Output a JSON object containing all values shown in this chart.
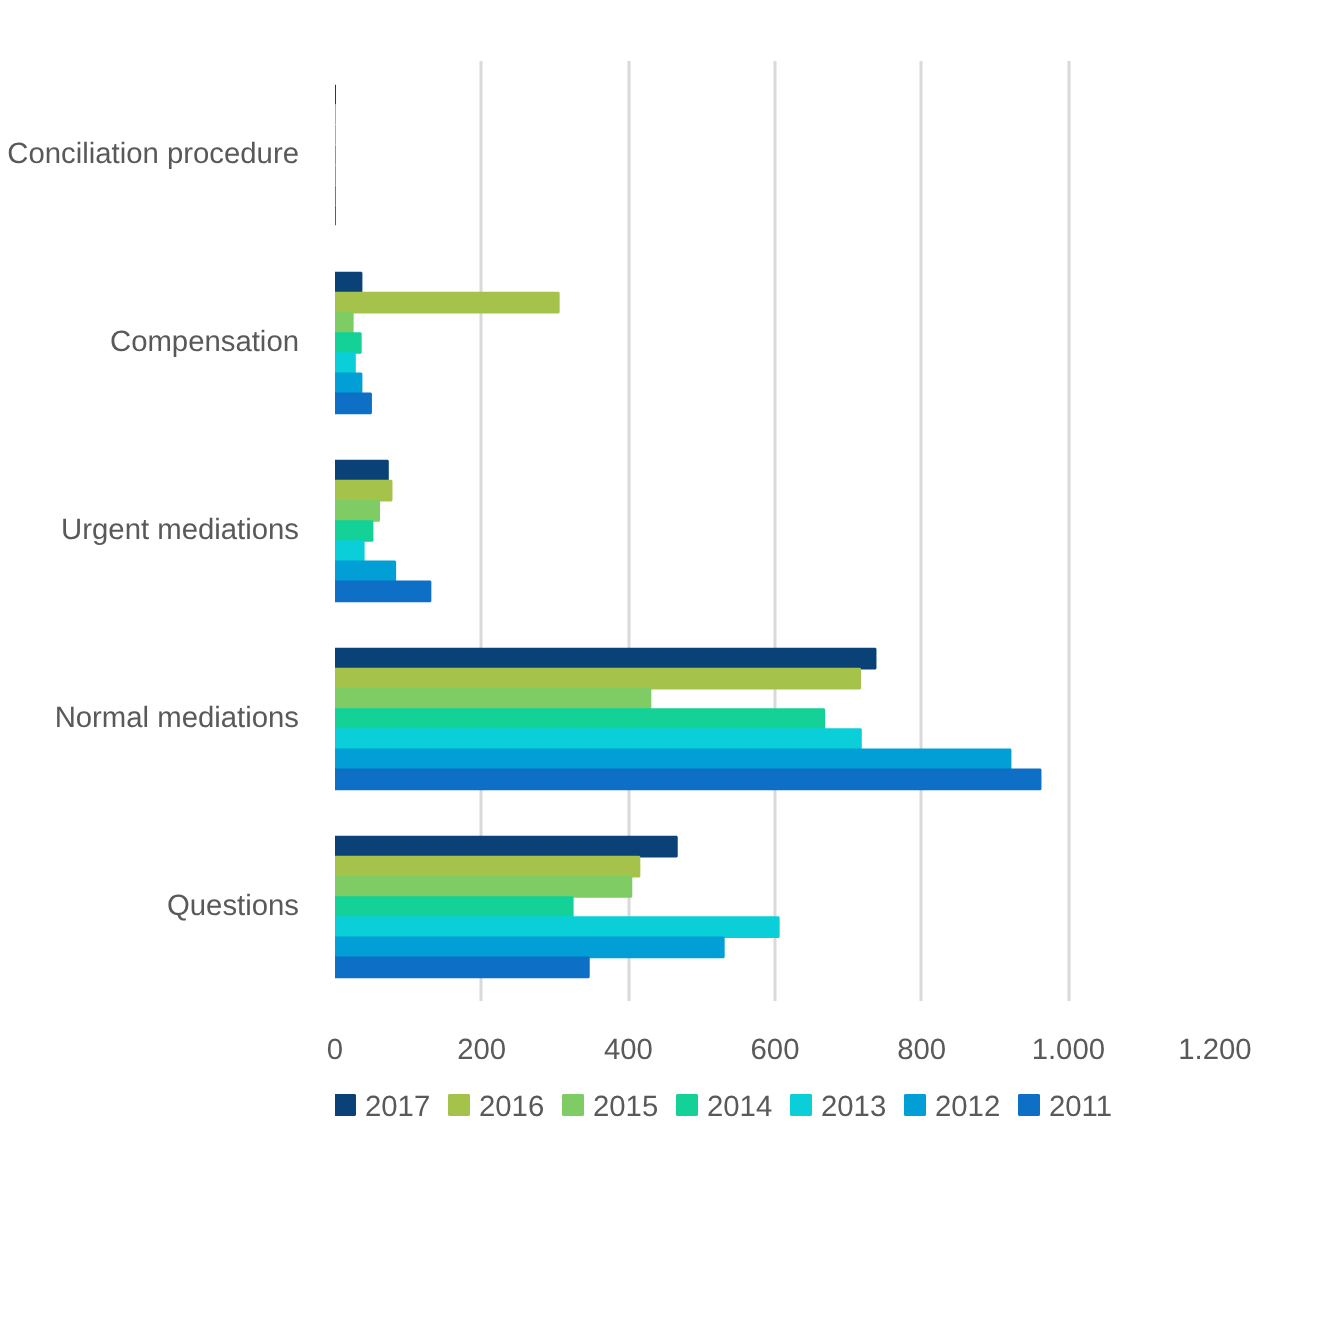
{
  "chart_data": {
    "type": "bar",
    "orientation": "horizontal",
    "categories": [
      "Conciliation procedure",
      "Compensation",
      "Urgent mediations",
      "Normal mediations",
      "Questions"
    ],
    "series": [
      {
        "name": "2017",
        "color": "#0a4278",
        "values": [
          0,
          36,
          72,
          737,
          466
        ]
      },
      {
        "name": "2016",
        "color": "#a5c34a",
        "values": [
          0,
          305,
          77,
          716,
          415
        ]
      },
      {
        "name": "2015",
        "color": "#7fcc65",
        "values": [
          0,
          24,
          60,
          430,
          404
        ]
      },
      {
        "name": "2014",
        "color": "#13d197",
        "values": [
          0,
          35,
          51,
          667,
          324
        ]
      },
      {
        "name": "2013",
        "color": "#0bcfd8",
        "values": [
          0,
          27,
          39,
          717,
          605
        ]
      },
      {
        "name": "2012",
        "color": "#019fd5",
        "values": [
          0,
          36,
          82,
          921,
          530
        ]
      },
      {
        "name": "2011",
        "color": "#0e6fc6",
        "values": [
          0,
          49,
          130,
          962,
          346
        ]
      }
    ],
    "xlim": [
      0,
      1200
    ],
    "xticks": [
      0,
      200,
      400,
      600,
      800,
      {
        "value": 1000,
        "label": "1.000"
      },
      {
        "value": 1200,
        "label": "1.200"
      }
    ],
    "grid": "x",
    "legend": "bottom"
  }
}
